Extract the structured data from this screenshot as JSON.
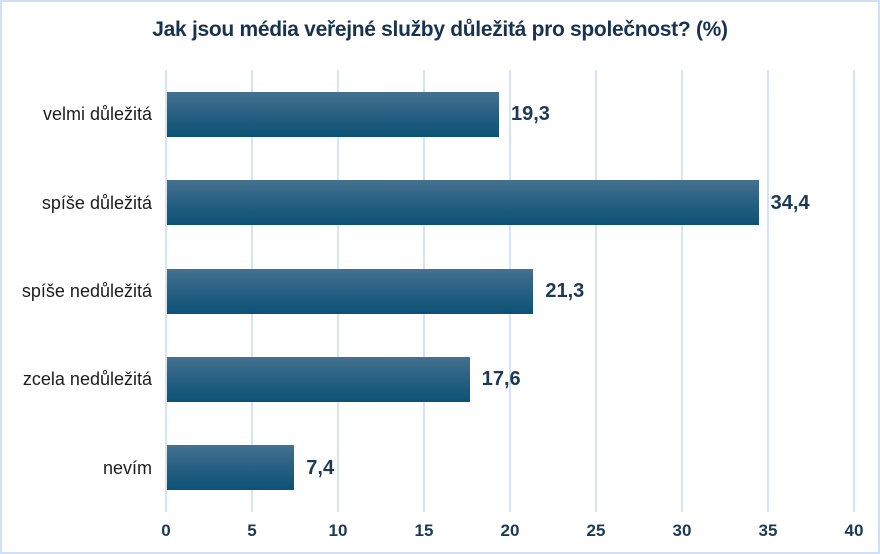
{
  "page": {
    "background": "#ffffff",
    "border_color": "#cfe0f2"
  },
  "chart_data": {
    "type": "bar",
    "orientation": "horizontal",
    "title": "Jak jsou média veřejné služby důležitá pro společnost? (%)",
    "categories": [
      "velmi důležitá",
      "spíše důležitá",
      "spíše nedůležitá",
      "zcela nedůležitá",
      "nevím"
    ],
    "values": [
      19.3,
      34.4,
      21.3,
      17.6,
      7.4
    ],
    "value_labels": [
      "19,3",
      "34,4",
      "21,3",
      "17,6",
      "7,4"
    ],
    "x_ticks": [
      0,
      5,
      10,
      15,
      20,
      25,
      30,
      35,
      40
    ],
    "xlim": [
      0,
      40
    ],
    "grid": "vertical-only",
    "legend": "none",
    "colors": {
      "bar_gradient_top": "#45718f",
      "bar_gradient_mid": "#255f81",
      "bar_gradient_bottom": "#0c5276",
      "title": "#17334f",
      "value_label": "#1c3a57",
      "tick_label": "#1c3a57",
      "category_label": "#1d1d1d",
      "gridline": "#d5e3f3"
    }
  }
}
